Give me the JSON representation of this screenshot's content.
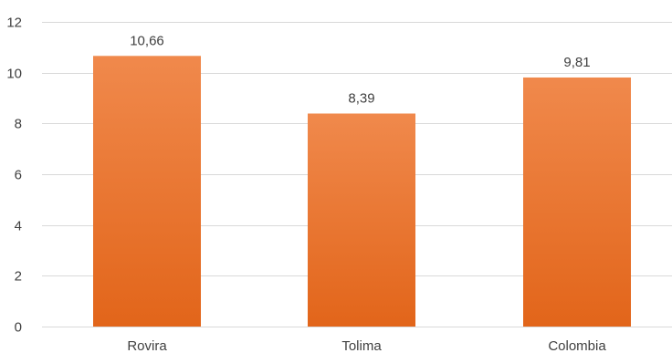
{
  "chart_data": {
    "type": "bar",
    "categories": [
      "Rovira",
      "Tolima",
      "Colombia"
    ],
    "values": [
      10.66,
      8.39,
      9.81
    ],
    "data_labels": [
      "10,66",
      "8,39",
      "9,81"
    ],
    "y_ticks": [
      "0",
      "2",
      "4",
      "6",
      "8",
      "10",
      "12"
    ],
    "ylim": [
      0,
      12
    ],
    "grid": true,
    "legend": "none",
    "colors": {
      "bar_top": "#F0894C",
      "bar_bottom": "#E2651A",
      "grid": "#D9D9D9",
      "text": "#404040"
    }
  }
}
